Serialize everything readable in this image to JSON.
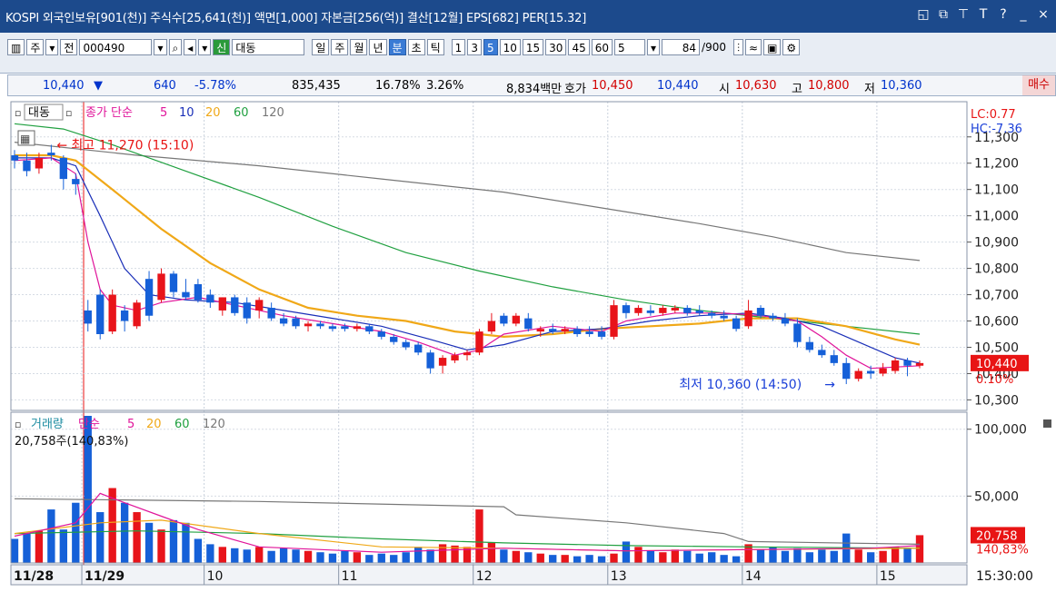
{
  "title": {
    "text": "KOSPI 외국인보유[901(천)] 주식수[25,641(천)] 액면[1,000] 자본금[256(억)] 결산[12월] EPS[682] PER[15.32]",
    "icons": [
      "restore-icon",
      "new-window-icon",
      "pin-icon",
      "font-icon",
      "help-icon",
      "minimize-icon",
      "close-icon"
    ]
  },
  "toolbar": {
    "mode": "주",
    "range": "전",
    "code": "000490",
    "badge": "신",
    "name": "대동",
    "periods": [
      "일",
      "주",
      "월",
      "년",
      "분",
      "초",
      "틱"
    ],
    "selected_period": "분",
    "intervals": [
      "1",
      "3",
      "5",
      "10",
      "15",
      "30",
      "45",
      "60"
    ],
    "selected_interval": "5",
    "interval_value": "5",
    "count": "84",
    "count_total": "/900"
  },
  "quote": {
    "price": "10,440",
    "change": "640",
    "change_pct": "-5.78%",
    "volume": "835,435",
    "turnover_pct": "16.78%",
    "ratio": "3.26%",
    "amount": "8,834백만",
    "ask_label": "호가",
    "ask": "10,450",
    "bid": "10,440",
    "open_label": "시",
    "open": "10,630",
    "high_label": "고",
    "high": "10,800",
    "low_label": "저",
    "low": "10,360",
    "buy_label": "매수"
  },
  "colors": {
    "up": "#e8141a",
    "down": "#1560d8",
    "ma5": "#e0149a",
    "ma10": "#1a2fb8",
    "ma20": "#f0a818",
    "ma60": "#20a040",
    "ma120": "#777777",
    "vol_ma5": "#e0149a",
    "vol_ma20": "#f0a818",
    "vol_ma60": "#20a040",
    "vol_ma120": "#777777"
  },
  "chart_data": [
    {
      "type": "candlestick",
      "legend": {
        "stock": "대동",
        "label": "종가 단순",
        "items": [
          "5",
          "10",
          "20",
          "60",
          "120"
        ]
      },
      "annotations": {
        "lc": "LC:0.77",
        "hc": "HC:-7.36",
        "max_label": "최고 11,270 (15:10)",
        "min_label": "최저 10,360 (14:50)",
        "current_price": "10,440",
        "current_pct": "0.10%"
      },
      "ylim": [
        10260,
        11420
      ],
      "yticks": [
        "11,300",
        "11,200",
        "11,100",
        "11,000",
        "10,900",
        "10,800",
        "10,700",
        "10,600",
        "10,500",
        "10,400",
        "10,300"
      ],
      "ytick_values": [
        11300,
        11200,
        11100,
        11000,
        10900,
        10800,
        10700,
        10600,
        10500,
        10400,
        10300
      ],
      "x_labels": [
        {
          "label": "11/28",
          "index": 0
        },
        {
          "label": "11/29",
          "index": 6
        },
        {
          "label": "10",
          "index": 16
        },
        {
          "label": "11",
          "index": 27
        },
        {
          "label": "12",
          "index": 38
        },
        {
          "label": "13",
          "index": 49
        },
        {
          "label": "14",
          "index": 60
        },
        {
          "label": "15",
          "index": 71
        }
      ],
      "last_time": "15:30:00",
      "candles": [
        {
          "o": 11230,
          "h": 11250,
          "l": 11180,
          "c": 11210
        },
        {
          "o": 11210,
          "h": 11240,
          "l": 11150,
          "c": 11170
        },
        {
          "o": 11180,
          "h": 11240,
          "l": 11160,
          "c": 11220
        },
        {
          "o": 11240,
          "h": 11270,
          "l": 11210,
          "c": 11230
        },
        {
          "o": 11220,
          "h": 11230,
          "l": 11100,
          "c": 11140
        },
        {
          "o": 11140,
          "h": 11160,
          "l": 11080,
          "c": 11120
        },
        {
          "o": 10640,
          "h": 10680,
          "l": 10560,
          "c": 10590
        },
        {
          "o": 10700,
          "h": 10720,
          "l": 10530,
          "c": 10550
        },
        {
          "o": 10560,
          "h": 10720,
          "l": 10550,
          "c": 10700
        },
        {
          "o": 10640,
          "h": 10660,
          "l": 10560,
          "c": 10600
        },
        {
          "o": 10580,
          "h": 10680,
          "l": 10570,
          "c": 10670
        },
        {
          "o": 10760,
          "h": 10790,
          "l": 10600,
          "c": 10620
        },
        {
          "o": 10680,
          "h": 10800,
          "l": 10670,
          "c": 10780
        },
        {
          "o": 10780,
          "h": 10790,
          "l": 10690,
          "c": 10710
        },
        {
          "o": 10710,
          "h": 10760,
          "l": 10680,
          "c": 10690
        },
        {
          "o": 10740,
          "h": 10760,
          "l": 10670,
          "c": 10680
        },
        {
          "o": 10700,
          "h": 10720,
          "l": 10650,
          "c": 10670
        },
        {
          "o": 10640,
          "h": 10690,
          "l": 10620,
          "c": 10690
        },
        {
          "o": 10690,
          "h": 10700,
          "l": 10620,
          "c": 10630
        },
        {
          "o": 10670,
          "h": 10690,
          "l": 10590,
          "c": 10610
        },
        {
          "o": 10640,
          "h": 10690,
          "l": 10610,
          "c": 10680
        },
        {
          "o": 10650,
          "h": 10670,
          "l": 10600,
          "c": 10610
        },
        {
          "o": 10610,
          "h": 10630,
          "l": 10580,
          "c": 10590
        },
        {
          "o": 10610,
          "h": 10620,
          "l": 10570,
          "c": 10580
        },
        {
          "o": 10580,
          "h": 10600,
          "l": 10560,
          "c": 10590
        },
        {
          "o": 10590,
          "h": 10600,
          "l": 10570,
          "c": 10580
        },
        {
          "o": 10580,
          "h": 10590,
          "l": 10560,
          "c": 10570
        },
        {
          "o": 10580,
          "h": 10590,
          "l": 10560,
          "c": 10570
        },
        {
          "o": 10570,
          "h": 10590,
          "l": 10560,
          "c": 10580
        },
        {
          "o": 10580,
          "h": 10590,
          "l": 10550,
          "c": 10560
        },
        {
          "o": 10560,
          "h": 10570,
          "l": 10530,
          "c": 10540
        },
        {
          "o": 10540,
          "h": 10550,
          "l": 10510,
          "c": 10520
        },
        {
          "o": 10520,
          "h": 10530,
          "l": 10490,
          "c": 10500
        },
        {
          "o": 10510,
          "h": 10520,
          "l": 10470,
          "c": 10480
        },
        {
          "o": 10480,
          "h": 10490,
          "l": 10400,
          "c": 10420
        },
        {
          "o": 10430,
          "h": 10470,
          "l": 10400,
          "c": 10460
        },
        {
          "o": 10450,
          "h": 10480,
          "l": 10440,
          "c": 10470
        },
        {
          "o": 10470,
          "h": 10490,
          "l": 10450,
          "c": 10480
        },
        {
          "o": 10480,
          "h": 10570,
          "l": 10470,
          "c": 10560
        },
        {
          "o": 10560,
          "h": 10630,
          "l": 10550,
          "c": 10600
        },
        {
          "o": 10620,
          "h": 10630,
          "l": 10580,
          "c": 10590
        },
        {
          "o": 10590,
          "h": 10630,
          "l": 10580,
          "c": 10620
        },
        {
          "o": 10610,
          "h": 10630,
          "l": 10560,
          "c": 10570
        },
        {
          "o": 10560,
          "h": 10580,
          "l": 10540,
          "c": 10570
        },
        {
          "o": 10570,
          "h": 10590,
          "l": 10550,
          "c": 10560
        },
        {
          "o": 10560,
          "h": 10580,
          "l": 10550,
          "c": 10570
        },
        {
          "o": 10570,
          "h": 10580,
          "l": 10540,
          "c": 10550
        },
        {
          "o": 10560,
          "h": 10580,
          "l": 10540,
          "c": 10550
        },
        {
          "o": 10560,
          "h": 10580,
          "l": 10530,
          "c": 10540
        },
        {
          "o": 10540,
          "h": 10680,
          "l": 10530,
          "c": 10660
        },
        {
          "o": 10660,
          "h": 10670,
          "l": 10610,
          "c": 10630
        },
        {
          "o": 10630,
          "h": 10660,
          "l": 10620,
          "c": 10650
        },
        {
          "o": 10640,
          "h": 10660,
          "l": 10620,
          "c": 10630
        },
        {
          "o": 10630,
          "h": 10660,
          "l": 10620,
          "c": 10650
        },
        {
          "o": 10640,
          "h": 10660,
          "l": 10630,
          "c": 10650
        },
        {
          "o": 10650,
          "h": 10660,
          "l": 10620,
          "c": 10630
        },
        {
          "o": 10640,
          "h": 10660,
          "l": 10620,
          "c": 10630
        },
        {
          "o": 10630,
          "h": 10640,
          "l": 10610,
          "c": 10620
        },
        {
          "o": 10620,
          "h": 10640,
          "l": 10600,
          "c": 10610
        },
        {
          "o": 10610,
          "h": 10620,
          "l": 10560,
          "c": 10570
        },
        {
          "o": 10580,
          "h": 10680,
          "l": 10570,
          "c": 10640
        },
        {
          "o": 10650,
          "h": 10660,
          "l": 10610,
          "c": 10620
        },
        {
          "o": 10620,
          "h": 10630,
          "l": 10600,
          "c": 10610
        },
        {
          "o": 10610,
          "h": 10630,
          "l": 10580,
          "c": 10590
        },
        {
          "o": 10590,
          "h": 10610,
          "l": 10500,
          "c": 10520
        },
        {
          "o": 10520,
          "h": 10540,
          "l": 10480,
          "c": 10490
        },
        {
          "o": 10490,
          "h": 10510,
          "l": 10460,
          "c": 10470
        },
        {
          "o": 10470,
          "h": 10490,
          "l": 10430,
          "c": 10440
        },
        {
          "o": 10440,
          "h": 10460,
          "l": 10360,
          "c": 10380
        },
        {
          "o": 10380,
          "h": 10420,
          "l": 10370,
          "c": 10410
        },
        {
          "o": 10410,
          "h": 10430,
          "l": 10380,
          "c": 10400
        },
        {
          "o": 10400,
          "h": 10440,
          "l": 10390,
          "c": 10420
        },
        {
          "o": 10410,
          "h": 10460,
          "l": 10400,
          "c": 10450
        },
        {
          "o": 10450,
          "h": 10460,
          "l": 10390,
          "c": 10430
        },
        {
          "o": 10430,
          "h": 10450,
          "l": 10420,
          "c": 10440
        }
      ],
      "ma5": [
        [
          0,
          11210
        ],
        [
          3,
          11220
        ],
        [
          5,
          11160
        ],
        [
          6,
          10900
        ],
        [
          7,
          10720
        ],
        [
          8,
          10660
        ],
        [
          10,
          10640
        ],
        [
          12,
          10670
        ],
        [
          15,
          10690
        ],
        [
          18,
          10660
        ],
        [
          22,
          10620
        ],
        [
          26,
          10590
        ],
        [
          30,
          10560
        ],
        [
          33,
          10520
        ],
        [
          36,
          10470
        ],
        [
          38,
          10490
        ],
        [
          40,
          10550
        ],
        [
          44,
          10580
        ],
        [
          48,
          10560
        ],
        [
          50,
          10600
        ],
        [
          54,
          10630
        ],
        [
          58,
          10630
        ],
        [
          61,
          10620
        ],
        [
          64,
          10600
        ],
        [
          66,
          10540
        ],
        [
          68,
          10470
        ],
        [
          70,
          10420
        ],
        [
          74,
          10430
        ]
      ],
      "ma10": [
        [
          0,
          11220
        ],
        [
          3,
          11220
        ],
        [
          5,
          11190
        ],
        [
          7,
          11000
        ],
        [
          9,
          10800
        ],
        [
          11,
          10700
        ],
        [
          14,
          10680
        ],
        [
          18,
          10670
        ],
        [
          22,
          10640
        ],
        [
          26,
          10610
        ],
        [
          30,
          10580
        ],
        [
          34,
          10530
        ],
        [
          37,
          10490
        ],
        [
          40,
          10510
        ],
        [
          44,
          10560
        ],
        [
          48,
          10570
        ],
        [
          52,
          10600
        ],
        [
          56,
          10620
        ],
        [
          60,
          10630
        ],
        [
          63,
          10610
        ],
        [
          66,
          10580
        ],
        [
          69,
          10520
        ],
        [
          72,
          10460
        ],
        [
          74,
          10440
        ]
      ],
      "ma20": [
        [
          0,
          11230
        ],
        [
          3,
          11230
        ],
        [
          5,
          11210
        ],
        [
          8,
          11100
        ],
        [
          12,
          10950
        ],
        [
          16,
          10820
        ],
        [
          20,
          10720
        ],
        [
          24,
          10650
        ],
        [
          28,
          10620
        ],
        [
          32,
          10600
        ],
        [
          36,
          10560
        ],
        [
          40,
          10540
        ],
        [
          44,
          10550
        ],
        [
          48,
          10570
        ],
        [
          52,
          10580
        ],
        [
          56,
          10590
        ],
        [
          60,
          10610
        ],
        [
          64,
          10610
        ],
        [
          68,
          10580
        ],
        [
          72,
          10530
        ],
        [
          74,
          10510
        ]
      ],
      "ma60": [
        [
          0,
          11350
        ],
        [
          4,
          11330
        ],
        [
          8,
          11270
        ],
        [
          14,
          11170
        ],
        [
          20,
          11070
        ],
        [
          26,
          10960
        ],
        [
          32,
          10860
        ],
        [
          38,
          10790
        ],
        [
          44,
          10730
        ],
        [
          50,
          10680
        ],
        [
          56,
          10640
        ],
        [
          62,
          10610
        ],
        [
          68,
          10580
        ],
        [
          74,
          10550
        ]
      ],
      "ma120": [
        [
          0,
          11280
        ],
        [
          10,
          11230
        ],
        [
          20,
          11190
        ],
        [
          30,
          11140
        ],
        [
          40,
          11090
        ],
        [
          48,
          11030
        ],
        [
          56,
          10970
        ],
        [
          62,
          10920
        ],
        [
          68,
          10860
        ],
        [
          74,
          10830
        ]
      ]
    },
    {
      "type": "bar",
      "legend": {
        "label": "거래량",
        "ma_label": "단순",
        "items": [
          "5",
          "20",
          "60",
          "120"
        ]
      },
      "summary": "20,758주(140,83%)",
      "current_label": "20,758",
      "current_pct": "140,83%",
      "ylim": [
        0,
        110000
      ],
      "yticks": [
        "100,000",
        "50,000"
      ],
      "ytick_values": [
        100000,
        50000
      ],
      "volumes": [
        18000,
        22000,
        24000,
        40000,
        25000,
        45000,
        110000,
        38000,
        56000,
        45000,
        38000,
        30000,
        25000,
        32000,
        30000,
        18000,
        14000,
        12000,
        11000,
        10000,
        12000,
        9000,
        11000,
        10000,
        9000,
        8000,
        7000,
        9000,
        8000,
        6000,
        7000,
        6000,
        8000,
        12000,
        10000,
        14000,
        13000,
        12000,
        40000,
        15000,
        10000,
        9000,
        8000,
        7000,
        6000,
        6000,
        5000,
        6000,
        5000,
        7000,
        16000,
        12000,
        9000,
        8000,
        10000,
        9000,
        7000,
        8000,
        6000,
        5000,
        14000,
        10000,
        12000,
        9000,
        11000,
        8000,
        10000,
        9000,
        22000,
        10000,
        8000,
        9000,
        12000,
        11000,
        20758
      ],
      "ma5": [
        [
          0,
          20000
        ],
        [
          5,
          30000
        ],
        [
          7,
          52000
        ],
        [
          9,
          45000
        ],
        [
          12,
          35000
        ],
        [
          15,
          25000
        ],
        [
          20,
          12000
        ],
        [
          30,
          8000
        ],
        [
          40,
          11000
        ],
        [
          50,
          9000
        ],
        [
          60,
          10000
        ],
        [
          70,
          11000
        ],
        [
          74,
          13000
        ]
      ],
      "ma20": [
        [
          0,
          22000
        ],
        [
          7,
          30000
        ],
        [
          12,
          32000
        ],
        [
          20,
          22000
        ],
        [
          30,
          12000
        ],
        [
          40,
          11000
        ],
        [
          50,
          9000
        ],
        [
          60,
          10000
        ],
        [
          74,
          11000
        ]
      ],
      "ma60": [
        [
          0,
          22000
        ],
        [
          10,
          24000
        ],
        [
          20,
          22000
        ],
        [
          30,
          18000
        ],
        [
          40,
          15000
        ],
        [
          50,
          13000
        ],
        [
          60,
          12000
        ],
        [
          74,
          11000
        ]
      ],
      "ma120": [
        [
          0,
          48000
        ],
        [
          20,
          46000
        ],
        [
          40,
          42000
        ],
        [
          41,
          36000
        ],
        [
          50,
          30000
        ],
        [
          58,
          22000
        ],
        [
          60,
          16000
        ],
        [
          74,
          14000
        ]
      ]
    }
  ]
}
